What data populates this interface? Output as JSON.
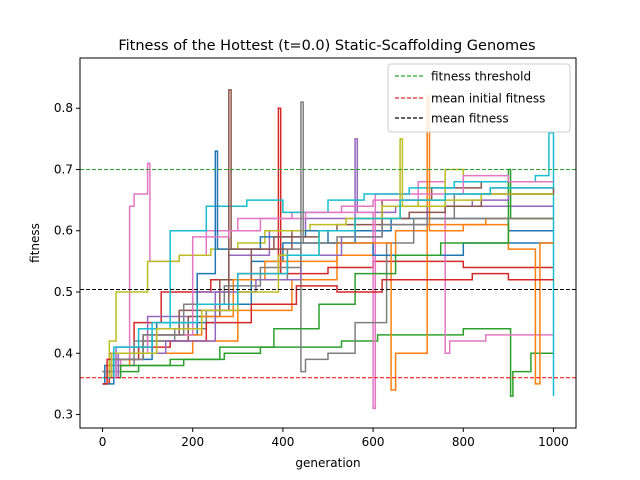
{
  "chart_data": {
    "type": "line",
    "title": "Fitness of the Hottest (t=0.0) Static-Scaffolding Genomes",
    "xlabel": "generation",
    "ylabel": "fitness",
    "xlim": [
      -50,
      1050
    ],
    "ylim": [
      0.278,
      0.882
    ],
    "xticks": [
      0,
      200,
      400,
      600,
      800,
      1000
    ],
    "yticks": [
      0.3,
      0.4,
      0.5,
      0.6,
      0.7,
      0.8
    ],
    "grid": false,
    "legend_position": "top-right",
    "legend": [
      {
        "label": "fitness threshold",
        "color": "#2ca02c",
        "style": "dashed"
      },
      {
        "label": "mean initial fitness",
        "color": "#d62728",
        "style": "dashed"
      },
      {
        "label": "mean fitness",
        "color": "#000000",
        "style": "dashed"
      }
    ],
    "reference_lines": [
      {
        "label": "fitness threshold",
        "y": 0.7,
        "color": "#2ca02c"
      },
      {
        "label": "mean initial fitness",
        "y": 0.36,
        "color": "#ff0000"
      },
      {
        "label": "mean fitness",
        "y": 0.504,
        "color": "#000000"
      }
    ],
    "series_palette": [
      "#1f77b4",
      "#ff7f0e",
      "#2ca02c",
      "#d62728",
      "#9467bd",
      "#8c564b",
      "#e377c2",
      "#7f7f7f",
      "#bcbd22",
      "#17becf"
    ],
    "series": [
      {
        "color": "#1f77b4",
        "points": [
          [
            0,
            0.35
          ],
          [
            5,
            0.38
          ],
          [
            30,
            0.4
          ],
          [
            120,
            0.45
          ],
          [
            250,
            0.48
          ],
          [
            330,
            0.55
          ],
          [
            400,
            0.58
          ],
          [
            560,
            0.6
          ],
          [
            640,
            0.62
          ],
          [
            800,
            0.62
          ],
          [
            900,
            0.6
          ],
          [
            1000,
            0.6
          ]
        ]
      },
      {
        "color": "#ff7f0e",
        "points": [
          [
            0,
            0.36
          ],
          [
            10,
            0.38
          ],
          [
            60,
            0.4
          ],
          [
            200,
            0.42
          ],
          [
            300,
            0.47
          ],
          [
            420,
            0.52
          ],
          [
            520,
            0.56
          ],
          [
            650,
            0.6
          ],
          [
            720,
            0.61
          ],
          [
            850,
            0.62
          ],
          [
            1000,
            0.62
          ]
        ]
      },
      {
        "color": "#2ca02c",
        "points": [
          [
            0,
            0.36
          ],
          [
            20,
            0.37
          ],
          [
            80,
            0.38
          ],
          [
            180,
            0.39
          ],
          [
            270,
            0.4
          ],
          [
            350,
            0.41
          ],
          [
            450,
            0.41
          ],
          [
            530,
            0.42
          ],
          [
            610,
            0.43
          ],
          [
            700,
            0.43
          ],
          [
            800,
            0.44
          ],
          [
            880,
            0.44
          ],
          [
            905,
            0.33
          ],
          [
            910,
            0.37
          ],
          [
            950,
            0.4
          ],
          [
            1000,
            0.4
          ]
        ]
      },
      {
        "color": "#d62728",
        "points": [
          [
            0,
            0.35
          ],
          [
            15,
            0.4
          ],
          [
            70,
            0.45
          ],
          [
            130,
            0.5
          ],
          [
            240,
            0.52
          ],
          [
            300,
            0.53
          ],
          [
            390,
            0.8
          ],
          [
            395,
            0.53
          ],
          [
            500,
            0.54
          ],
          [
            600,
            0.55
          ],
          [
            700,
            0.55
          ],
          [
            800,
            0.54
          ],
          [
            1000,
            0.54
          ]
        ]
      },
      {
        "color": "#9467bd",
        "points": [
          [
            0,
            0.37
          ],
          [
            30,
            0.41
          ],
          [
            100,
            0.46
          ],
          [
            200,
            0.5
          ],
          [
            280,
            0.56
          ],
          [
            370,
            0.6
          ],
          [
            450,
            0.62
          ],
          [
            560,
            0.75
          ],
          [
            565,
            0.63
          ],
          [
            650,
            0.64
          ],
          [
            760,
            0.64
          ],
          [
            900,
            0.64
          ],
          [
            1000,
            0.64
          ]
        ]
      },
      {
        "color": "#8c564b",
        "points": [
          [
            0,
            0.36
          ],
          [
            25,
            0.39
          ],
          [
            90,
            0.42
          ],
          [
            190,
            0.46
          ],
          [
            260,
            0.52
          ],
          [
            330,
            0.57
          ],
          [
            420,
            0.6
          ],
          [
            520,
            0.61
          ],
          [
            620,
            0.65
          ],
          [
            730,
            0.67
          ],
          [
            840,
            0.68
          ],
          [
            950,
            0.68
          ],
          [
            1000,
            0.68
          ]
        ]
      },
      {
        "color": "#e377c2",
        "points": [
          [
            0,
            0.37
          ],
          [
            40,
            0.39
          ],
          [
            60,
            0.64
          ],
          [
            70,
            0.66
          ],
          [
            100,
            0.71
          ],
          [
            105,
            0.55
          ],
          [
            170,
            0.56
          ],
          [
            230,
            0.6
          ],
          [
            300,
            0.62
          ],
          [
            420,
            0.63
          ],
          [
            600,
            0.31
          ],
          [
            605,
            0.66
          ],
          [
            700,
            0.68
          ],
          [
            760,
            0.4
          ],
          [
            770,
            0.42
          ],
          [
            850,
            0.43
          ],
          [
            1000,
            0.43
          ]
        ]
      },
      {
        "color": "#7f7f7f",
        "points": [
          [
            0,
            0.36
          ],
          [
            20,
            0.38
          ],
          [
            70,
            0.42
          ],
          [
            160,
            0.44
          ],
          [
            230,
            0.47
          ],
          [
            300,
            0.52
          ],
          [
            410,
            0.57
          ],
          [
            440,
            0.37
          ],
          [
            450,
            0.39
          ],
          [
            500,
            0.4
          ],
          [
            560,
            0.45
          ],
          [
            630,
            0.58
          ],
          [
            690,
            0.62
          ],
          [
            780,
            0.66
          ],
          [
            860,
            0.67
          ],
          [
            1000,
            0.67
          ]
        ]
      },
      {
        "color": "#bcbd22",
        "points": [
          [
            0,
            0.36
          ],
          [
            15,
            0.42
          ],
          [
            30,
            0.5
          ],
          [
            100,
            0.55
          ],
          [
            170,
            0.56
          ],
          [
            240,
            0.57
          ],
          [
            300,
            0.58
          ],
          [
            360,
            0.6
          ],
          [
            460,
            0.61
          ],
          [
            540,
            0.62
          ],
          [
            620,
            0.64
          ],
          [
            700,
            0.65
          ],
          [
            760,
            0.7
          ],
          [
            800,
            0.68
          ],
          [
            900,
            0.66
          ],
          [
            1000,
            0.66
          ]
        ]
      },
      {
        "color": "#17becf",
        "points": [
          [
            0,
            0.36
          ],
          [
            30,
            0.4
          ],
          [
            80,
            0.44
          ],
          [
            150,
            0.6
          ],
          [
            230,
            0.64
          ],
          [
            320,
            0.65
          ],
          [
            400,
            0.63
          ],
          [
            500,
            0.65
          ],
          [
            580,
            0.66
          ],
          [
            680,
            0.67
          ],
          [
            780,
            0.68
          ],
          [
            880,
            0.68
          ],
          [
            960,
            0.69
          ],
          [
            990,
            0.76
          ],
          [
            1000,
            0.33
          ]
        ]
      },
      {
        "color": "#1f77b4",
        "points": [
          [
            0,
            0.35
          ],
          [
            25,
            0.39
          ],
          [
            110,
            0.43
          ],
          [
            210,
            0.53
          ],
          [
            250,
            0.73
          ],
          [
            255,
            0.57
          ],
          [
            350,
            0.59
          ],
          [
            450,
            0.6
          ],
          [
            500,
            0.58
          ],
          [
            600,
            0.56
          ],
          [
            700,
            0.56
          ],
          [
            800,
            0.58
          ],
          [
            900,
            0.58
          ],
          [
            1000,
            0.58
          ]
        ]
      },
      {
        "color": "#ff7f0e",
        "points": [
          [
            0,
            0.36
          ],
          [
            20,
            0.4
          ],
          [
            120,
            0.43
          ],
          [
            220,
            0.46
          ],
          [
            290,
            0.52
          ],
          [
            360,
            0.55
          ],
          [
            430,
            0.55
          ],
          [
            520,
            0.58
          ],
          [
            640,
            0.34
          ],
          [
            650,
            0.4
          ],
          [
            720,
            0.82
          ],
          [
            725,
            0.6
          ],
          [
            800,
            0.61
          ],
          [
            900,
            0.57
          ],
          [
            960,
            0.35
          ],
          [
            970,
            0.58
          ],
          [
            1000,
            0.58
          ]
        ]
      },
      {
        "color": "#2ca02c",
        "points": [
          [
            0,
            0.36
          ],
          [
            40,
            0.38
          ],
          [
            150,
            0.39
          ],
          [
            260,
            0.41
          ],
          [
            380,
            0.44
          ],
          [
            480,
            0.48
          ],
          [
            560,
            0.53
          ],
          [
            650,
            0.56
          ],
          [
            750,
            0.58
          ],
          [
            850,
            0.58
          ],
          [
            900,
            0.7
          ],
          [
            905,
            0.62
          ],
          [
            1000,
            0.62
          ]
        ]
      },
      {
        "color": "#d62728",
        "points": [
          [
            0,
            0.35
          ],
          [
            10,
            0.39
          ],
          [
            80,
            0.41
          ],
          [
            150,
            0.42
          ],
          [
            230,
            0.45
          ],
          [
            330,
            0.48
          ],
          [
            430,
            0.51
          ],
          [
            520,
            0.5
          ],
          [
            620,
            0.52
          ],
          [
            720,
            0.52
          ],
          [
            820,
            0.53
          ],
          [
            900,
            0.52
          ],
          [
            1000,
            0.52
          ]
        ]
      },
      {
        "color": "#9467bd",
        "points": [
          [
            0,
            0.36
          ],
          [
            35,
            0.4
          ],
          [
            140,
            0.42
          ],
          [
            250,
            0.5
          ],
          [
            340,
            0.52
          ],
          [
            440,
            0.56
          ],
          [
            530,
            0.59
          ],
          [
            620,
            0.61
          ],
          [
            720,
            0.64
          ],
          [
            820,
            0.65
          ],
          [
            900,
            0.66
          ],
          [
            1000,
            0.66
          ]
        ]
      },
      {
        "color": "#8c564b",
        "points": [
          [
            0,
            0.36
          ],
          [
            20,
            0.4
          ],
          [
            90,
            0.43
          ],
          [
            170,
            0.47
          ],
          [
            280,
            0.83
          ],
          [
            285,
            0.57
          ],
          [
            380,
            0.59
          ],
          [
            480,
            0.6
          ],
          [
            560,
            0.62
          ],
          [
            680,
            0.63
          ],
          [
            760,
            0.64
          ],
          [
            840,
            0.66
          ],
          [
            1000,
            0.67
          ]
        ]
      },
      {
        "color": "#e377c2",
        "points": [
          [
            0,
            0.36
          ],
          [
            30,
            0.4
          ],
          [
            100,
            0.43
          ],
          [
            200,
            0.59
          ],
          [
            280,
            0.6
          ],
          [
            350,
            0.62
          ],
          [
            450,
            0.63
          ],
          [
            530,
            0.64
          ],
          [
            600,
            0.65
          ],
          [
            700,
            0.66
          ],
          [
            800,
            0.69
          ],
          [
            900,
            0.68
          ],
          [
            1000,
            0.68
          ]
        ]
      },
      {
        "color": "#7f7f7f",
        "points": [
          [
            0,
            0.37
          ],
          [
            20,
            0.39
          ],
          [
            90,
            0.43
          ],
          [
            180,
            0.48
          ],
          [
            270,
            0.51
          ],
          [
            350,
            0.54
          ],
          [
            440,
            0.81
          ],
          [
            445,
            0.58
          ],
          [
            520,
            0.59
          ],
          [
            620,
            0.61
          ],
          [
            720,
            0.62
          ],
          [
            850,
            0.62
          ],
          [
            1000,
            0.62
          ]
        ]
      },
      {
        "color": "#bcbd22",
        "points": [
          [
            0,
            0.36
          ],
          [
            20,
            0.4
          ],
          [
            120,
            0.44
          ],
          [
            220,
            0.47
          ],
          [
            300,
            0.5
          ],
          [
            390,
            0.56
          ],
          [
            480,
            0.6
          ],
          [
            560,
            0.62
          ],
          [
            660,
            0.75
          ],
          [
            665,
            0.64
          ],
          [
            760,
            0.65
          ],
          [
            840,
            0.66
          ],
          [
            1000,
            0.66
          ]
        ]
      },
      {
        "color": "#17becf",
        "points": [
          [
            0,
            0.36
          ],
          [
            25,
            0.41
          ],
          [
            110,
            0.45
          ],
          [
            210,
            0.48
          ],
          [
            300,
            0.53
          ],
          [
            410,
            0.56
          ],
          [
            480,
            0.6
          ],
          [
            560,
            0.62
          ],
          [
            660,
            0.65
          ],
          [
            760,
            0.66
          ],
          [
            860,
            0.67
          ],
          [
            1000,
            0.67
          ]
        ]
      }
    ]
  }
}
